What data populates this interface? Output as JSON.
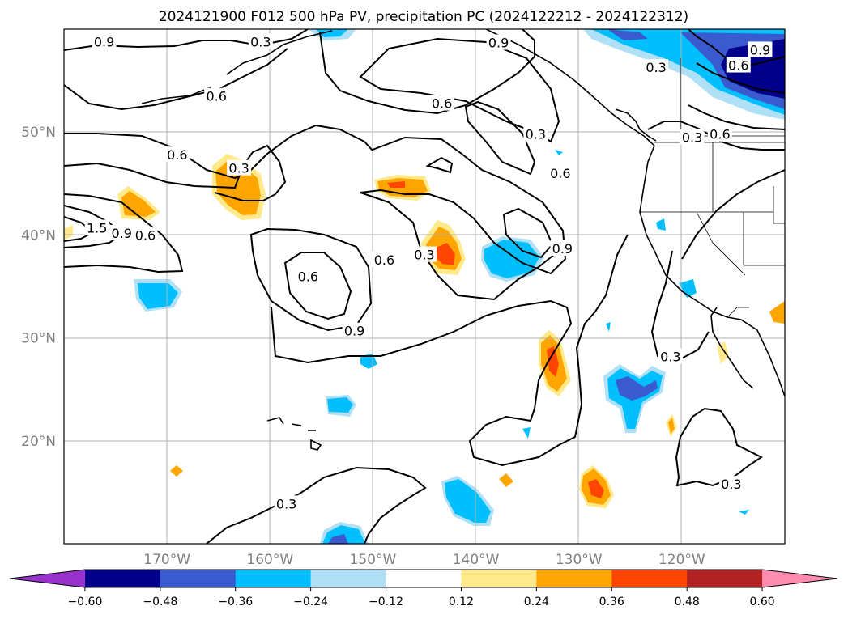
{
  "chart_data": {
    "type": "map",
    "title": "2024121900 F012 500 hPa PV, precipitation PC (2024122212 - 2024122312)",
    "lon_range": [
      -180,
      -110
    ],
    "lat_range": [
      10,
      60
    ],
    "lat_ticks": [
      {
        "value": 50,
        "label": "50°N"
      },
      {
        "value": 40,
        "label": "40°N"
      },
      {
        "value": 30,
        "label": "30°N"
      },
      {
        "value": 20,
        "label": "20°N"
      }
    ],
    "lon_ticks": [
      {
        "value": -170,
        "label": "170°W"
      },
      {
        "value": -160,
        "label": "160°W"
      },
      {
        "value": -150,
        "label": "150°W"
      },
      {
        "value": -140,
        "label": "140°W"
      },
      {
        "value": -130,
        "label": "130°W"
      },
      {
        "value": -120,
        "label": "120°W"
      }
    ],
    "grid": true,
    "colorbar": {
      "levels": [
        "−0.60",
        "−0.48",
        "−0.36",
        "−0.24",
        "−0.12",
        "0.12",
        "0.24",
        "0.36",
        "0.48",
        "0.60"
      ],
      "colors": [
        "#9932cc",
        "#00008b",
        "#3a5bd0",
        "#00bfff",
        "#b0e0f6",
        "#ffffff",
        "#ffe98a",
        "#ffa500",
        "#ff4500",
        "#b22222",
        "#ff8cb0"
      ],
      "extend": "both"
    },
    "contour_labels": [
      {
        "lon": -176.1,
        "lat": 58.8,
        "text": "0.9"
      },
      {
        "lon": -160.9,
        "lat": 58.8,
        "text": "0.3"
      },
      {
        "lon": -137.8,
        "lat": 58.7,
        "text": "0.9"
      },
      {
        "lon": -122.5,
        "lat": 56.3,
        "text": "0.3"
      },
      {
        "lon": -112.4,
        "lat": 58.0,
        "text": "0.9"
      },
      {
        "lon": -114.5,
        "lat": 56.5,
        "text": "0.6"
      },
      {
        "lon": -165.2,
        "lat": 53.5,
        "text": "0.6"
      },
      {
        "lon": -143.3,
        "lat": 52.8,
        "text": "0.6"
      },
      {
        "lon": -134.2,
        "lat": 49.8,
        "text": "0.3"
      },
      {
        "lon": -131.8,
        "lat": 46.0,
        "text": "0.6"
      },
      {
        "lon": -169.0,
        "lat": 47.8,
        "text": "0.6"
      },
      {
        "lon": -163.0,
        "lat": 46.5,
        "text": "0.3"
      },
      {
        "lon": -119.0,
        "lat": 49.5,
        "text": "0.3"
      },
      {
        "lon": -116.3,
        "lat": 49.8,
        "text": "0.6"
      },
      {
        "lon": -176.8,
        "lat": 40.7,
        "text": "1.5"
      },
      {
        "lon": -174.4,
        "lat": 40.2,
        "text": "0.9"
      },
      {
        "lon": -172.1,
        "lat": 40.0,
        "text": "0.6"
      },
      {
        "lon": -148.9,
        "lat": 37.6,
        "text": "0.6"
      },
      {
        "lon": -145.0,
        "lat": 38.1,
        "text": "0.3"
      },
      {
        "lon": -131.6,
        "lat": 38.7,
        "text": "0.9"
      },
      {
        "lon": -156.3,
        "lat": 36.0,
        "text": "0.6"
      },
      {
        "lon": -151.8,
        "lat": 30.7,
        "text": "0.9"
      },
      {
        "lon": -121.1,
        "lat": 28.2,
        "text": "0.3"
      },
      {
        "lon": -115.2,
        "lat": 15.8,
        "text": "0.3"
      },
      {
        "lon": -158.4,
        "lat": 13.9,
        "text": "0.3"
      }
    ]
  }
}
